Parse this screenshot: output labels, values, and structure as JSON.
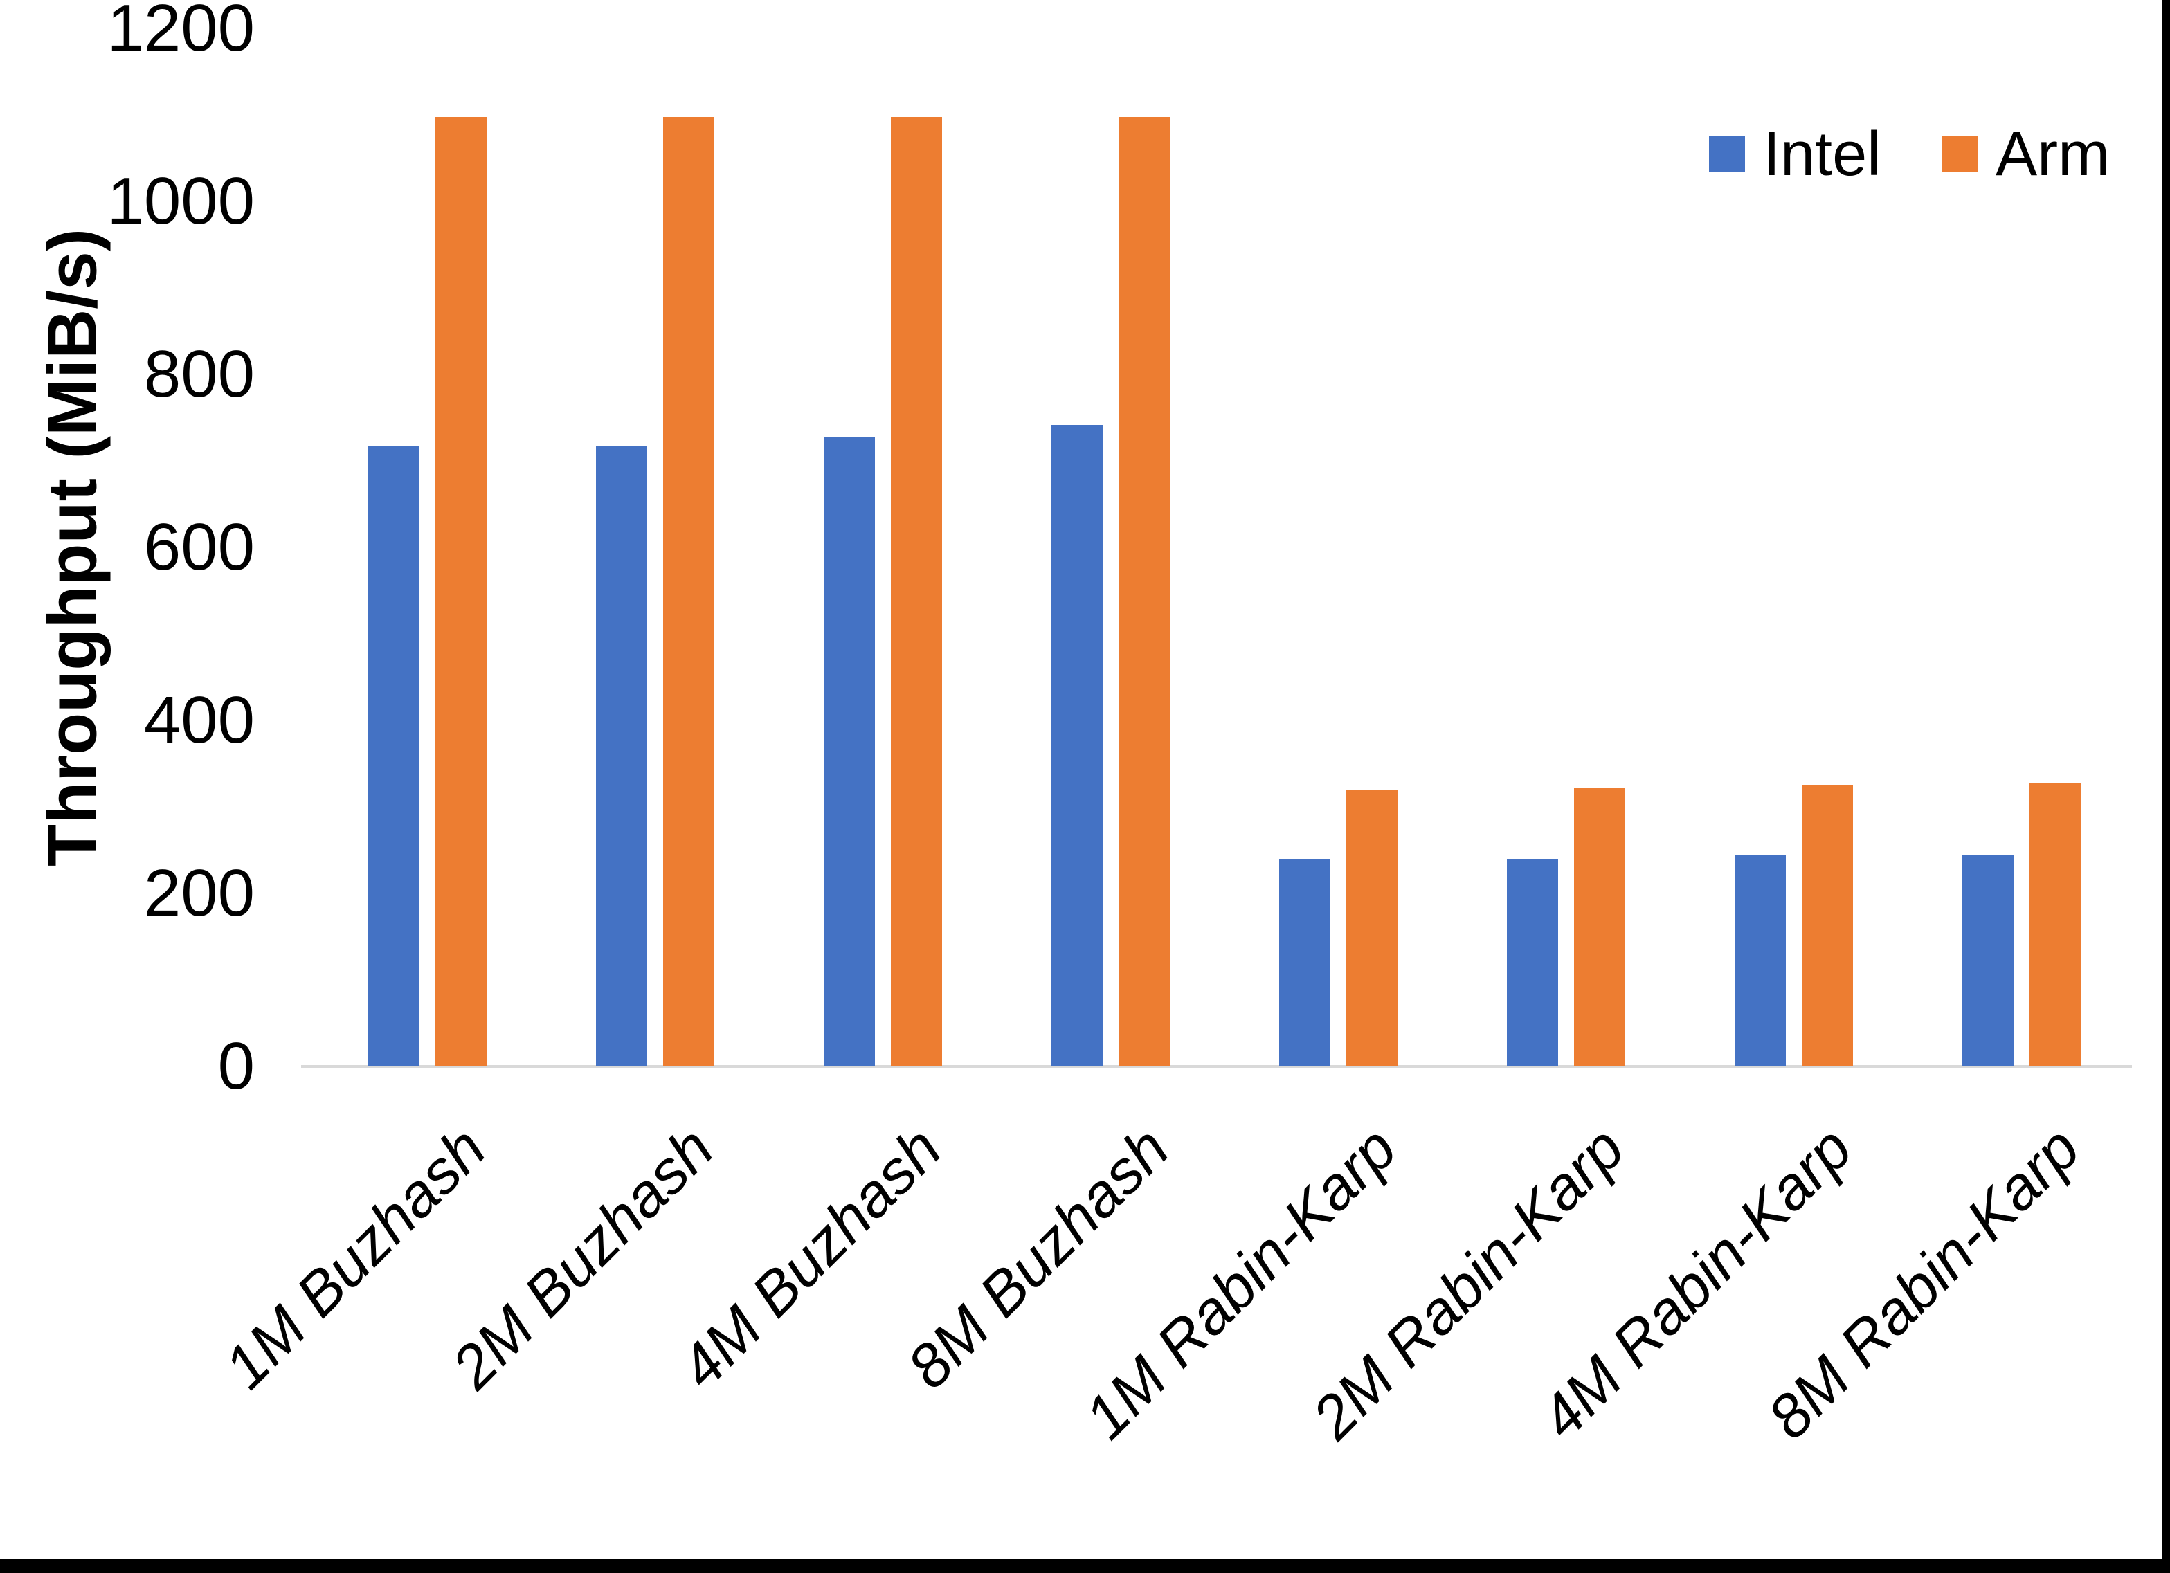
{
  "chart_data": {
    "type": "bar",
    "title": "",
    "xlabel": "",
    "ylabel": "Throughput (MiB/s)",
    "categories": [
      "1M Buzhash",
      "2M Buzhash",
      "4M Buzhash",
      "8M Buzhash",
      "1M Rabin-Karp",
      "2M Rabin-Karp",
      "4M Rabin-Karp",
      "8M Rabin-Karp"
    ],
    "series": [
      {
        "name": "Intel",
        "color": "#4472c4",
        "values": [
          718,
          717,
          727,
          742,
          240,
          240,
          244,
          245
        ]
      },
      {
        "name": "Arm",
        "color": "#ed7d31",
        "values": [
          1098,
          1098,
          1098,
          1098,
          319,
          322,
          326,
          328
        ]
      }
    ],
    "y_axis": {
      "min": 0,
      "max": 1200,
      "tick_step": 200,
      "ticks": [
        0,
        200,
        400,
        600,
        800,
        1000,
        1200
      ]
    },
    "legend": {
      "position": "top-right",
      "entries": [
        "Intel",
        "Arm"
      ]
    },
    "grid": false,
    "axis_line_color": "#d9d9d9",
    "category_label_style": "italic, rotated 45deg",
    "frame": {
      "right_border_color": "#000000",
      "bottom_border_color": "#000000"
    }
  }
}
